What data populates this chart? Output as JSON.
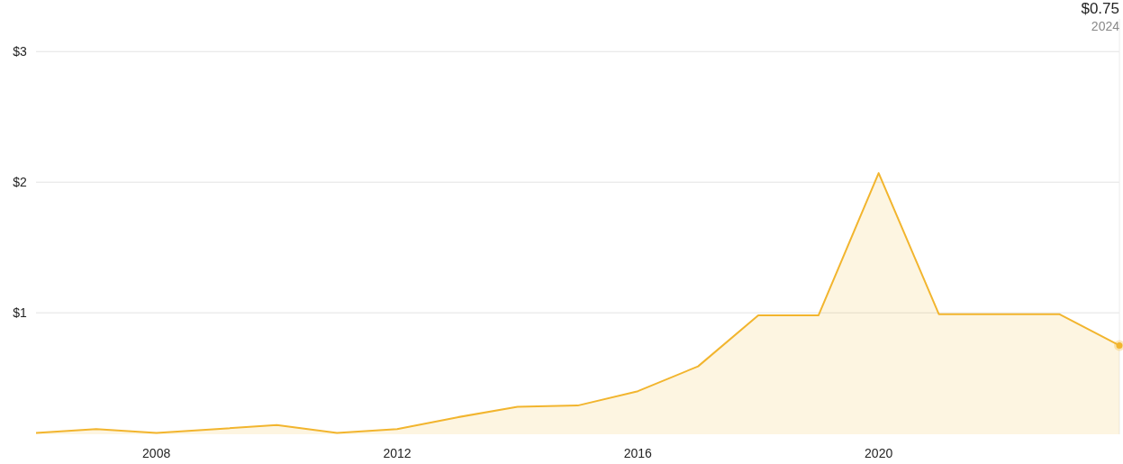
{
  "chart_data": {
    "type": "area",
    "x": [
      2006,
      2007,
      2008,
      2009,
      2010,
      2011,
      2012,
      2013,
      2014,
      2015,
      2016,
      2017,
      2018,
      2019,
      2020,
      2021,
      2022,
      2023,
      2024
    ],
    "series": [
      {
        "color": "#f2b52e",
        "values": [
          0.08,
          0.11,
          0.08,
          0.11,
          0.14,
          0.08,
          0.11,
          0.2,
          0.28,
          0.29,
          0.4,
          0.59,
          0.98,
          0.98,
          2.07,
          0.99,
          0.99,
          0.99,
          0.75
        ]
      }
    ],
    "xlim": [
      2006,
      2024
    ],
    "xticks": [
      2008,
      2012,
      2016,
      2020
    ],
    "ylim": [
      0.07,
      3.25
    ],
    "yticks": [
      {
        "value": 1,
        "label": "$1"
      },
      {
        "value": 2,
        "label": "$2"
      },
      {
        "value": 3,
        "label": "$3"
      }
    ],
    "grid": "y",
    "annotations": [
      "$0.75",
      "2024"
    ]
  }
}
